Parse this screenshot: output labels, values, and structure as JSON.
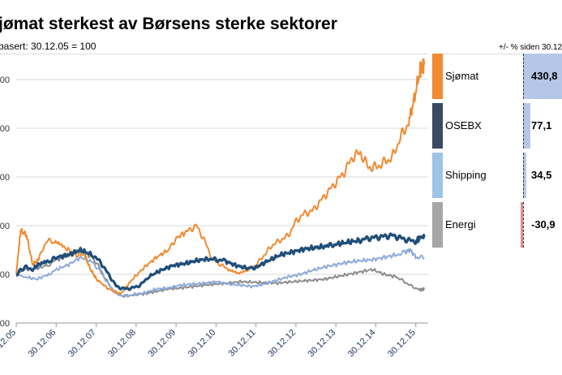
{
  "header": {
    "title": "jømat sterkest av Børsens sterke sektorer",
    "subtitle": "basert: 30.12.05 = 100",
    "right_note": "+/- % siden 30.12"
  },
  "chart_data": {
    "type": "line",
    "ylim": [
      0,
      600
    ],
    "y_tick_labels": [
      "00",
      "00",
      "00",
      "00",
      "00",
      "00"
    ],
    "x_tick_labels": [
      "0.12.05",
      "30.12.06",
      "30.12.07",
      "30.12.08",
      "30.12.09",
      "30.12.10",
      "30.12.11",
      "30.12.12",
      "30.12.13",
      "30.12.14",
      "30.12.15"
    ],
    "x_range": [
      2005.99,
      2016.3
    ],
    "colors": {
      "sjomat": "#f08a30",
      "osebx": "#1f4e79",
      "shipping": "#8eaadb",
      "energi": "#8c8c8c"
    },
    "series": [
      {
        "key": "sjomat",
        "name": "Sjømat",
        "x": [
          2005.99,
          2006.1,
          2006.25,
          2006.4,
          2006.55,
          2006.75,
          2006.95,
          2007.2,
          2007.5,
          2007.7,
          2007.85,
          2008.0,
          2008.3,
          2008.6,
          2008.9,
          2009.2,
          2009.5,
          2009.8,
          2010.0,
          2010.3,
          2010.5,
          2010.7,
          2010.9,
          2011.1,
          2011.3,
          2011.55,
          2011.8,
          2012.0,
          2012.2,
          2012.4,
          2012.6,
          2012.8,
          2013.0,
          2013.2,
          2013.4,
          2013.6,
          2013.8,
          2014.0,
          2014.2,
          2014.4,
          2014.6,
          2014.8,
          2015.0,
          2015.2,
          2015.4,
          2015.6,
          2015.8,
          2015.95,
          2016.1,
          2016.2
        ],
        "values": [
          100,
          190,
          180,
          120,
          130,
          170,
          165,
          155,
          140,
          140,
          110,
          90,
          70,
          60,
          90,
          115,
          135,
          150,
          175,
          190,
          200,
          170,
          130,
          120,
          110,
          100,
          110,
          120,
          140,
          160,
          170,
          180,
          210,
          225,
          230,
          250,
          270,
          290,
          310,
          340,
          350,
          320,
          320,
          330,
          340,
          380,
          410,
          460,
          520,
          530
        ]
      },
      {
        "key": "osebx",
        "name": "OSEBX",
        "x": [
          2005.99,
          2006.2,
          2006.4,
          2006.55,
          2006.8,
          2007.0,
          2007.3,
          2007.6,
          2007.9,
          2008.1,
          2008.3,
          2008.5,
          2008.7,
          2008.9,
          2009.1,
          2009.3,
          2009.6,
          2009.9,
          2010.2,
          2010.5,
          2010.8,
          2011.0,
          2011.2,
          2011.5,
          2011.8,
          2012.0,
          2012.3,
          2012.6,
          2012.9,
          2013.2,
          2013.5,
          2013.8,
          2014.0,
          2014.3,
          2014.6,
          2014.8,
          2015.0,
          2015.2,
          2015.4,
          2015.6,
          2015.8,
          2016.0,
          2016.1,
          2016.2
        ],
        "values": [
          100,
          115,
          110,
          120,
          125,
          135,
          140,
          150,
          140,
          125,
          100,
          75,
          70,
          72,
          78,
          95,
          108,
          118,
          122,
          128,
          132,
          130,
          128,
          118,
          112,
          115,
          128,
          140,
          146,
          152,
          155,
          158,
          162,
          166,
          170,
          174,
          176,
          178,
          180,
          175,
          170,
          168,
          176,
          177
        ]
      },
      {
        "key": "shipping",
        "name": "Shipping",
        "x": [
          2005.99,
          2006.2,
          2006.5,
          2006.8,
          2007.0,
          2007.3,
          2007.6,
          2007.9,
          2008.1,
          2008.3,
          2008.5,
          2008.7,
          2008.9,
          2009.2,
          2009.5,
          2009.8,
          2010.1,
          2010.4,
          2010.7,
          2011.0,
          2011.3,
          2011.6,
          2011.9,
          2012.2,
          2012.5,
          2012.8,
          2013.1,
          2013.4,
          2013.7,
          2014.0,
          2014.3,
          2014.6,
          2014.9,
          2015.2,
          2015.5,
          2015.7,
          2015.85,
          2016.0,
          2016.2
        ],
        "values": [
          100,
          95,
          90,
          100,
          110,
          120,
          135,
          125,
          105,
          80,
          60,
          55,
          58,
          62,
          70,
          72,
          78,
          80,
          82,
          85,
          80,
          78,
          75,
          80,
          88,
          95,
          100,
          108,
          115,
          120,
          125,
          128,
          130,
          135,
          140,
          145,
          150,
          135,
          134
        ]
      },
      {
        "key": "energi",
        "name": "Energi",
        "x": [
          2005.99,
          2006.2,
          2006.5,
          2006.8,
          2007.0,
          2007.3,
          2007.6,
          2007.9,
          2008.1,
          2008.3,
          2008.5,
          2008.7,
          2008.9,
          2009.2,
          2009.5,
          2009.8,
          2010.1,
          2010.4,
          2010.7,
          2011.0,
          2011.3,
          2011.6,
          2011.9,
          2012.2,
          2012.5,
          2012.8,
          2013.1,
          2013.4,
          2013.7,
          2014.0,
          2014.3,
          2014.6,
          2014.9,
          2015.2,
          2015.5,
          2015.7,
          2015.9,
          2016.1,
          2016.2
        ],
        "values": [
          100,
          110,
          112,
          120,
          130,
          140,
          148,
          135,
          110,
          80,
          60,
          55,
          58,
          60,
          65,
          70,
          72,
          75,
          78,
          80,
          82,
          85,
          84,
          83,
          82,
          84,
          86,
          88,
          90,
          95,
          100,
          105,
          110,
          100,
          95,
          85,
          75,
          68,
          70
        ]
      }
    ],
    "legend": [
      {
        "key": "sjomat",
        "label": "Sjømat",
        "value": "430,8",
        "pct": 430.8,
        "swatch": "#f08a30",
        "bar": "#b4c7e7"
      },
      {
        "key": "osebx",
        "label": "OSEBX",
        "value": "77,1",
        "pct": 77.1,
        "swatch": "#3a4a63",
        "bar": "#b4c7e7"
      },
      {
        "key": "shipping",
        "label": "Shipping",
        "value": "34,5",
        "pct": 34.5,
        "swatch": "#9dc3e6",
        "bar": "#b4c7e7"
      },
      {
        "key": "energi",
        "label": "Energi",
        "value": "-30,9",
        "pct": -30.9,
        "swatch": "#a6a6a6",
        "bar": "#e88a8a"
      }
    ]
  }
}
